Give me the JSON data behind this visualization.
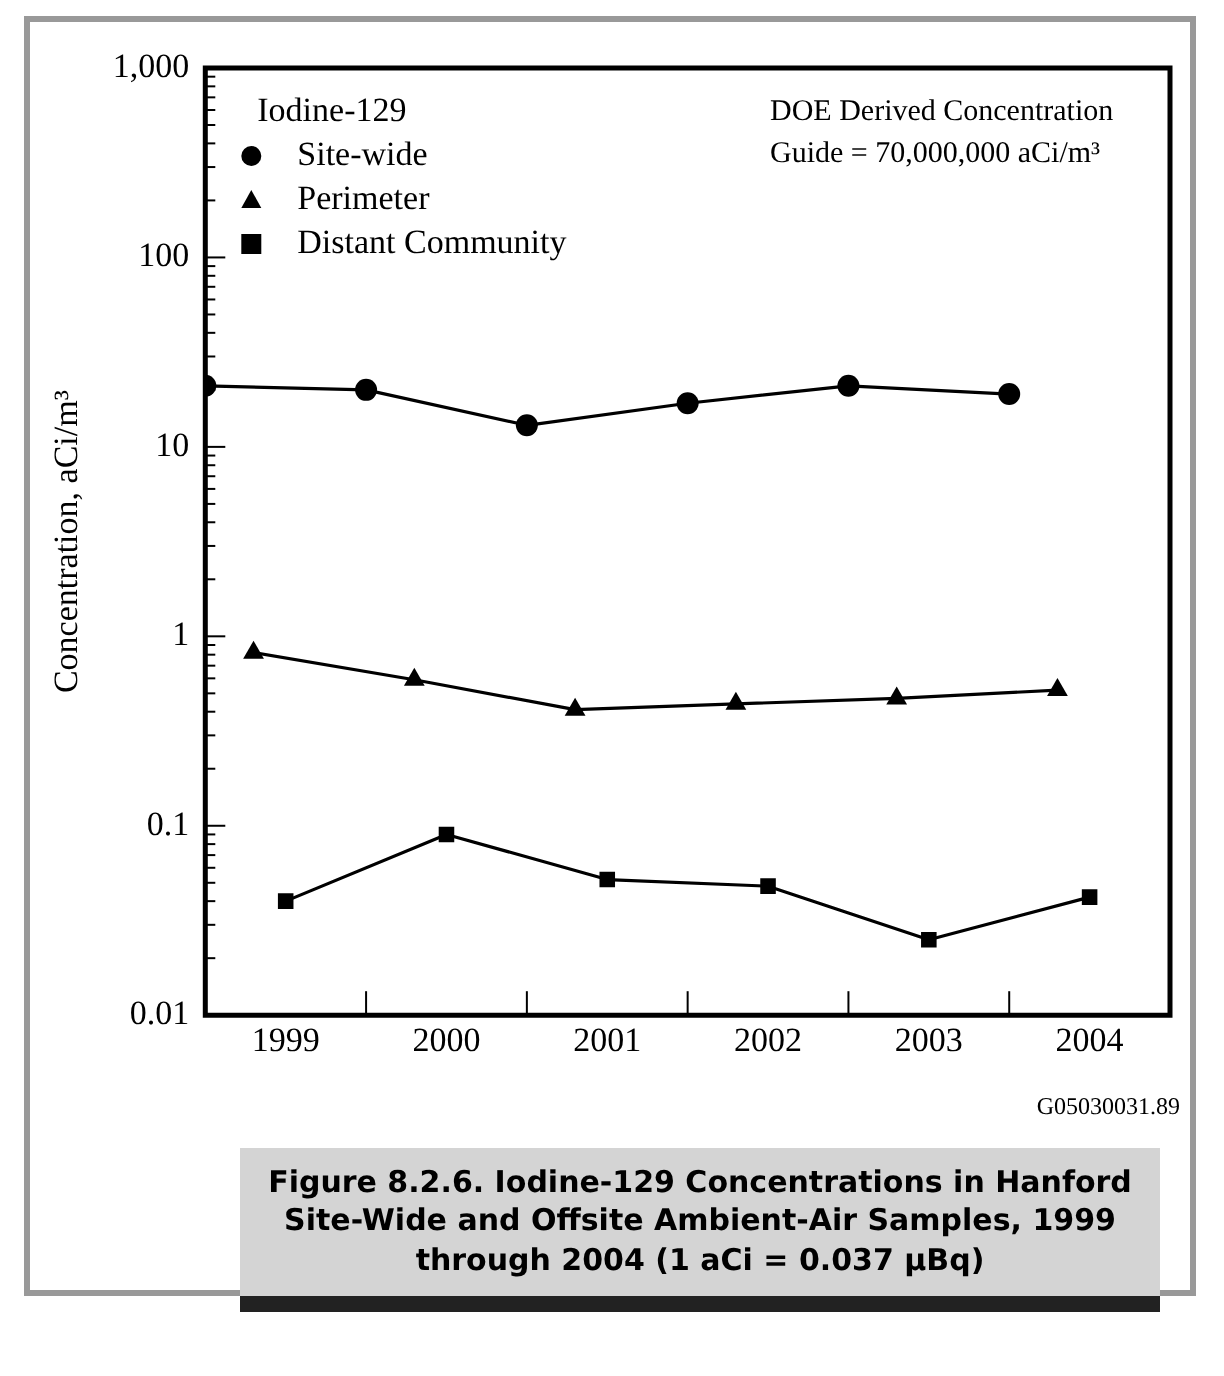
{
  "chart_data": {
    "type": "line",
    "title": "Figure 8.2.6. Iodine-129 Concentrations in Hanford Site-Wide and Offsite Ambient-Air Samples, 1999 through 2004 (1 aCi = 0.037 µBq)",
    "ylabel": "Concentration, aCi/m³",
    "legend_title": "Iodine-129",
    "legend": "top left",
    "log": "y",
    "grid": false,
    "annotations": [
      "DOE Derived Concentration Guide = 70,000,000 aCi/m³",
      "G05030031.89"
    ],
    "xlim": [
      1998.5,
      2004.5
    ],
    "xticks": [
      1999,
      {
        "value": 1999.5,
        "label": null
      },
      2000,
      {
        "value": 2000.5,
        "label": null
      },
      2001,
      {
        "value": 2001.5,
        "label": null
      },
      2002,
      {
        "value": 2002.5,
        "label": null
      },
      2003,
      {
        "value": 2003.5,
        "label": null
      },
      2004
    ],
    "ylim": [
      0.01,
      1000
    ],
    "yticks": [
      {
        "value": 0.01,
        "label": "0.01"
      },
      {
        "value": 0.02,
        "label": null
      },
      {
        "value": 0.03,
        "label": null
      },
      {
        "value": 0.04,
        "label": null
      },
      {
        "value": 0.05,
        "label": null
      },
      {
        "value": 0.06,
        "label": null
      },
      {
        "value": 0.07,
        "label": null
      },
      {
        "value": 0.08,
        "label": null
      },
      {
        "value": 0.09,
        "label": null
      },
      {
        "value": 0.1,
        "label": "0.1"
      },
      {
        "value": 0.2,
        "label": null
      },
      {
        "value": 0.3,
        "label": null
      },
      {
        "value": 0.4,
        "label": null
      },
      {
        "value": 0.5,
        "label": null
      },
      {
        "value": 0.6,
        "label": null
      },
      {
        "value": 0.7,
        "label": null
      },
      {
        "value": 0.8,
        "label": null
      },
      {
        "value": 0.9,
        "label": null
      },
      1,
      {
        "value": 2,
        "label": null
      },
      {
        "value": 3,
        "label": null
      },
      {
        "value": 4,
        "label": null
      },
      {
        "value": 5,
        "label": null
      },
      {
        "value": 6,
        "label": null
      },
      {
        "value": 7,
        "label": null
      },
      {
        "value": 8,
        "label": null
      },
      {
        "value": 9,
        "label": null
      },
      10,
      {
        "value": 20,
        "label": null
      },
      {
        "value": 30,
        "label": null
      },
      {
        "value": 40,
        "label": null
      },
      {
        "value": 50,
        "label": null
      },
      {
        "value": 60,
        "label": null
      },
      {
        "value": 70,
        "label": null
      },
      {
        "value": 80,
        "label": null
      },
      {
        "value": 90,
        "label": null
      },
      100,
      {
        "value": 200,
        "label": null
      },
      {
        "value": 300,
        "label": null
      },
      {
        "value": 400,
        "label": null
      },
      {
        "value": 500,
        "label": null
      },
      {
        "value": 600,
        "label": null
      },
      {
        "value": 700,
        "label": null
      },
      {
        "value": 800,
        "label": null
      },
      {
        "value": 900,
        "label": null
      },
      {
        "value": 1000,
        "label": "1,000"
      }
    ],
    "series": [
      {
        "name": "Site-wide",
        "color": "#000000",
        "marker": "circle",
        "x": [
          1998.5,
          1999.5,
          2000.5,
          2001.5,
          2002.5,
          2003.5
        ],
        "values": [
          21,
          20,
          13,
          17,
          21,
          19
        ]
      },
      {
        "name": "Perimeter",
        "color": "#000000",
        "marker": "triangle",
        "x": [
          1998.8,
          1999.8,
          2000.8,
          2001.8,
          2002.8,
          2003.8
        ],
        "values": [
          0.82,
          0.59,
          0.41,
          0.44,
          0.47,
          0.52
        ]
      },
      {
        "name": "Distant Community",
        "color": "#000000",
        "marker": "square",
        "x": [
          1999.0,
          2000.0,
          2001.0,
          2002.0,
          2003.0,
          2004.0
        ],
        "values": [
          0.04,
          0.09,
          0.052,
          0.048,
          0.025,
          0.042
        ]
      }
    ]
  }
}
